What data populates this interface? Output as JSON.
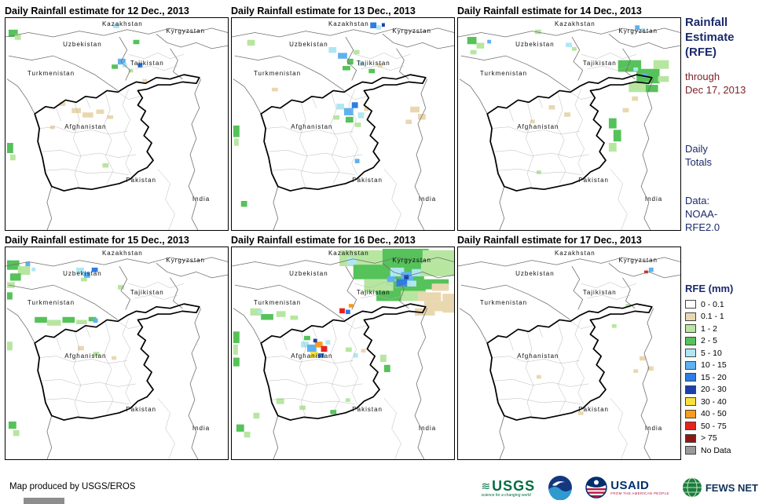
{
  "panels": [
    {
      "title": "Daily Rainfall estimate for 12 Dec., 2013",
      "patches": [
        [
          4,
          16,
          12,
          10,
          "g2"
        ],
        [
          12,
          22,
          8,
          8,
          "g1"
        ],
        [
          140,
          8,
          8,
          6,
          "c"
        ],
        [
          146,
          56,
          10,
          8,
          "b1"
        ],
        [
          152,
          62,
          6,
          6,
          "c"
        ],
        [
          138,
          64,
          8,
          6,
          "g2"
        ],
        [
          166,
          30,
          8,
          6,
          "g2"
        ],
        [
          172,
          62,
          6,
          6,
          "b2"
        ],
        [
          160,
          70,
          6,
          5,
          "g1"
        ],
        [
          86,
          124,
          12,
          7,
          "t"
        ],
        [
          100,
          130,
          14,
          7,
          "t"
        ],
        [
          118,
          126,
          10,
          6,
          "t"
        ],
        [
          70,
          116,
          8,
          5,
          "t"
        ],
        [
          132,
          134,
          8,
          5,
          "t"
        ],
        [
          2,
          172,
          8,
          14,
          "g2"
        ],
        [
          6,
          188,
          7,
          8,
          "g1"
        ],
        [
          126,
          200,
          8,
          6,
          "g1"
        ],
        [
          178,
          84,
          6,
          5,
          "t"
        ],
        [
          58,
          148,
          6,
          5,
          "t"
        ]
      ]
    },
    {
      "title": "Daily Rainfall estimate for 13 Dec., 2013",
      "patches": [
        [
          180,
          6,
          8,
          8,
          "b2"
        ],
        [
          188,
          10,
          6,
          6,
          "c"
        ],
        [
          195,
          7,
          4,
          5,
          "b3"
        ],
        [
          20,
          30,
          10,
          8,
          "g1"
        ],
        [
          126,
          40,
          10,
          8,
          "c"
        ],
        [
          138,
          48,
          12,
          8,
          "b1"
        ],
        [
          150,
          56,
          8,
          8,
          "g2"
        ],
        [
          158,
          44,
          8,
          6,
          "g1"
        ],
        [
          144,
          66,
          10,
          6,
          "g2"
        ],
        [
          164,
          60,
          8,
          6,
          "c"
        ],
        [
          178,
          70,
          8,
          6,
          "g2"
        ],
        [
          190,
          62,
          6,
          6,
          "t"
        ],
        [
          136,
          118,
          10,
          8,
          "c"
        ],
        [
          146,
          124,
          12,
          10,
          "b1"
        ],
        [
          156,
          116,
          8,
          8,
          "b2"
        ],
        [
          148,
          136,
          10,
          8,
          "g2"
        ],
        [
          164,
          130,
          8,
          8,
          "c"
        ],
        [
          172,
          122,
          6,
          6,
          "t"
        ],
        [
          132,
          134,
          8,
          6,
          "g1"
        ],
        [
          160,
          144,
          8,
          6,
          "g1"
        ],
        [
          232,
          122,
          12,
          8,
          "t"
        ],
        [
          242,
          132,
          10,
          8,
          "t"
        ],
        [
          226,
          140,
          8,
          6,
          "t"
        ],
        [
          160,
          194,
          6,
          6,
          "b1"
        ],
        [
          2,
          148,
          8,
          16,
          "g2"
        ],
        [
          3,
          166,
          6,
          10,
          "g1"
        ],
        [
          12,
          252,
          8,
          8,
          "g2"
        ],
        [
          52,
          96,
          8,
          5,
          "t"
        ]
      ]
    },
    {
      "title": "Daily Rainfall estimate for 14 Dec., 2013",
      "patches": [
        [
          12,
          26,
          12,
          10,
          "g2"
        ],
        [
          24,
          34,
          10,
          8,
          "g1"
        ],
        [
          16,
          44,
          8,
          6,
          "g1"
        ],
        [
          38,
          30,
          5,
          5,
          "b1"
        ],
        [
          100,
          16,
          8,
          6,
          "g1"
        ],
        [
          140,
          34,
          8,
          6,
          "c"
        ],
        [
          148,
          40,
          6,
          5,
          "g1"
        ],
        [
          230,
          10,
          6,
          6,
          "b1"
        ],
        [
          238,
          14,
          5,
          5,
          "c"
        ],
        [
          208,
          58,
          30,
          16,
          "g2"
        ],
        [
          232,
          70,
          30,
          20,
          "g2"
        ],
        [
          222,
          88,
          26,
          14,
          "g1"
        ],
        [
          254,
          58,
          20,
          12,
          "g1"
        ],
        [
          244,
          92,
          16,
          10,
          "g2"
        ],
        [
          240,
          76,
          6,
          6,
          "b1"
        ],
        [
          228,
          68,
          6,
          5,
          "c"
        ],
        [
          260,
          80,
          14,
          8,
          "g1"
        ],
        [
          196,
          138,
          10,
          14,
          "g2"
        ],
        [
          202,
          154,
          10,
          16,
          "g2"
        ],
        [
          196,
          172,
          10,
          12,
          "g1"
        ],
        [
          118,
          120,
          8,
          6,
          "t"
        ],
        [
          138,
          130,
          8,
          6,
          "t"
        ],
        [
          94,
          140,
          6,
          5,
          "t"
        ],
        [
          214,
          124,
          8,
          6,
          "t"
        ],
        [
          226,
          108,
          8,
          6,
          "t"
        ],
        [
          102,
          210,
          6,
          5,
          "g1"
        ]
      ]
    },
    {
      "title": "Daily Rainfall estimate for 15 Dec., 2013",
      "patches": [
        [
          2,
          18,
          16,
          13,
          "g2"
        ],
        [
          16,
          26,
          16,
          12,
          "g1"
        ],
        [
          6,
          36,
          14,
          10,
          "g2"
        ],
        [
          26,
          20,
          6,
          6,
          "b1"
        ],
        [
          34,
          28,
          5,
          5,
          "c"
        ],
        [
          2,
          48,
          10,
          8,
          "g1"
        ],
        [
          92,
          28,
          10,
          8,
          "c"
        ],
        [
          102,
          34,
          8,
          8,
          "b1"
        ],
        [
          112,
          28,
          8,
          6,
          "b2"
        ],
        [
          98,
          42,
          8,
          5,
          "g1"
        ],
        [
          146,
          52,
          8,
          6,
          "g1"
        ],
        [
          2,
          62,
          7,
          10,
          "g2"
        ],
        [
          38,
          96,
          16,
          8,
          "g2"
        ],
        [
          54,
          100,
          18,
          8,
          "g1"
        ],
        [
          74,
          96,
          16,
          8,
          "g2"
        ],
        [
          92,
          100,
          14,
          6,
          "g1"
        ],
        [
          108,
          96,
          10,
          6,
          "g2"
        ],
        [
          114,
          98,
          6,
          6,
          "b1"
        ],
        [
          94,
          136,
          8,
          6,
          "t"
        ],
        [
          114,
          144,
          8,
          6,
          "g1"
        ],
        [
          138,
          150,
          6,
          5,
          "t"
        ],
        [
          2,
          130,
          7,
          12,
          "g1"
        ],
        [
          4,
          240,
          10,
          10,
          "g2"
        ],
        [
          10,
          252,
          8,
          8,
          "g1"
        ]
      ]
    },
    {
      "title": "Daily Rainfall estimate for 16 Dec., 2013",
      "patches": [
        [
          140,
          4,
          62,
          22,
          "g1"
        ],
        [
          196,
          2,
          60,
          26,
          "g2"
        ],
        [
          248,
          4,
          41,
          20,
          "g1"
        ],
        [
          158,
          24,
          52,
          20,
          "g2"
        ],
        [
          204,
          26,
          46,
          22,
          "g2"
        ],
        [
          246,
          22,
          43,
          18,
          "g1"
        ],
        [
          172,
          44,
          42,
          18,
          "g1"
        ],
        [
          210,
          46,
          42,
          16,
          "g2"
        ],
        [
          250,
          44,
          32,
          14,
          "g2"
        ],
        [
          188,
          60,
          36,
          14,
          "g2"
        ],
        [
          220,
          60,
          32,
          14,
          "g1"
        ],
        [
          150,
          14,
          12,
          10,
          "c"
        ],
        [
          206,
          28,
          18,
          12,
          "c"
        ],
        [
          220,
          34,
          16,
          12,
          "b1"
        ],
        [
          234,
          30,
          12,
          10,
          "c"
        ],
        [
          214,
          44,
          14,
          10,
          "b2"
        ],
        [
          228,
          46,
          12,
          8,
          "c"
        ],
        [
          202,
          40,
          10,
          8,
          "b1"
        ],
        [
          224,
          38,
          6,
          6,
          "b3"
        ],
        [
          242,
          62,
          30,
          12,
          "t"
        ],
        [
          250,
          74,
          39,
          14,
          "t"
        ],
        [
          238,
          84,
          26,
          10,
          "t"
        ],
        [
          260,
          50,
          22,
          10,
          "t"
        ],
        [
          274,
          64,
          15,
          26,
          "t"
        ],
        [
          140,
          84,
          7,
          7,
          "r"
        ],
        [
          148,
          86,
          6,
          6,
          "b2"
        ],
        [
          152,
          78,
          6,
          5,
          "o"
        ],
        [
          24,
          84,
          14,
          10,
          "g1"
        ],
        [
          38,
          92,
          16,
          8,
          "g2"
        ],
        [
          58,
          88,
          12,
          8,
          "g1"
        ],
        [
          76,
          94,
          10,
          6,
          "g1"
        ],
        [
          34,
          86,
          6,
          5,
          "c"
        ],
        [
          2,
          116,
          8,
          16,
          "g2"
        ],
        [
          2,
          134,
          6,
          14,
          "g1"
        ],
        [
          2,
          152,
          8,
          12,
          "g2"
        ],
        [
          90,
          130,
          10,
          8,
          "c"
        ],
        [
          98,
          134,
          12,
          10,
          "b1"
        ],
        [
          108,
          130,
          10,
          8,
          "o"
        ],
        [
          116,
          136,
          8,
          8,
          "r"
        ],
        [
          102,
          144,
          10,
          8,
          "y"
        ],
        [
          112,
          146,
          8,
          6,
          "b2"
        ],
        [
          94,
          122,
          8,
          6,
          "g2"
        ],
        [
          122,
          128,
          6,
          6,
          "c"
        ],
        [
          106,
          126,
          5,
          5,
          "b3"
        ],
        [
          148,
          138,
          8,
          6,
          "g1"
        ],
        [
          158,
          146,
          6,
          6,
          "c"
        ],
        [
          168,
          140,
          6,
          5,
          "t"
        ],
        [
          193,
          148,
          8,
          10,
          "g1"
        ],
        [
          198,
          162,
          8,
          10,
          "g2"
        ],
        [
          58,
          208,
          10,
          8,
          "g1"
        ],
        [
          88,
          218,
          8,
          6,
          "g1"
        ],
        [
          128,
          224,
          8,
          6,
          "g2"
        ],
        [
          28,
          228,
          8,
          8,
          "g1"
        ],
        [
          148,
          208,
          6,
          5,
          "g1"
        ],
        [
          6,
          244,
          10,
          10,
          "g2"
        ],
        [
          16,
          254,
          8,
          8,
          "g1"
        ]
      ]
    },
    {
      "title": "Daily Rainfall estimate for 17 Dec., 2013",
      "patches": [
        [
          236,
          150,
          8,
          6,
          "t"
        ],
        [
          246,
          164,
          8,
          6,
          "t"
        ],
        [
          228,
          168,
          6,
          5,
          "t"
        ],
        [
          200,
          106,
          6,
          5,
          "g1"
        ],
        [
          156,
          226,
          7,
          5,
          "t"
        ],
        [
          102,
          176,
          6,
          5,
          "t"
        ],
        [
          248,
          28,
          6,
          6,
          "b1"
        ],
        [
          242,
          32,
          5,
          4,
          "r"
        ],
        [
          218,
          78,
          6,
          5,
          "g1"
        ]
      ]
    }
  ],
  "map_labels": [
    "Kazakhstan",
    "Kyrgyzstan",
    "Uzbekistan",
    "Tajikistan",
    "Turkmenistan",
    "Afghanistan",
    "Pakistan",
    "India"
  ],
  "sidebar": {
    "title": "Rainfall\nEstimate\n(RFE)",
    "through": "through\nDec 17, 2013",
    "totals": "Daily\nTotals",
    "data_source": "Data:\nNOAA-\nRFE2.0"
  },
  "legend": {
    "title": "RFE (mm)",
    "entries": [
      {
        "label": "0 - 0.1",
        "color": "#ffffff"
      },
      {
        "label": "0.1 - 1",
        "color": "#e9d7b0"
      },
      {
        "label": "1 - 2",
        "color": "#b7e6a0"
      },
      {
        "label": "2 - 5",
        "color": "#55c25a"
      },
      {
        "label": "5 - 10",
        "color": "#b0e6f2"
      },
      {
        "label": "10 - 15",
        "color": "#5fb1ef"
      },
      {
        "label": "15 - 20",
        "color": "#2d7de4"
      },
      {
        "label": "20 - 30",
        "color": "#1b3fae"
      },
      {
        "label": "30 - 40",
        "color": "#f7e13e"
      },
      {
        "label": "40 - 50",
        "color": "#f79c1e"
      },
      {
        "label": "50 - 75",
        "color": "#e5231e"
      },
      {
        "label": "> 75",
        "color": "#8c1a12"
      },
      {
        "label": "No Data",
        "color": "#9a9a9a"
      }
    ]
  },
  "colors": {
    "t": "#e9d7b0",
    "g1": "#b7e6a0",
    "g2": "#55c25a",
    "c": "#b0e6f2",
    "b1": "#5fb1ef",
    "b2": "#2d7de4",
    "b3": "#1b3fae",
    "y": "#f7e13e",
    "o": "#f79c1e",
    "r": "#e5231e",
    "dr": "#8c1a12",
    "nd": "#9a9a9a"
  },
  "footer": {
    "attribution": "Map produced by USGS/EROS",
    "usgs": "USGS",
    "usgs_tagline": "science for a changing world",
    "usaid": "USAID",
    "usaid_tagline": "FROM THE AMERICAN PEOPLE",
    "fews": "FEWS NET",
    "logo_names": [
      "USGS",
      "NOAA",
      "USAID",
      "FEWS NET"
    ]
  }
}
